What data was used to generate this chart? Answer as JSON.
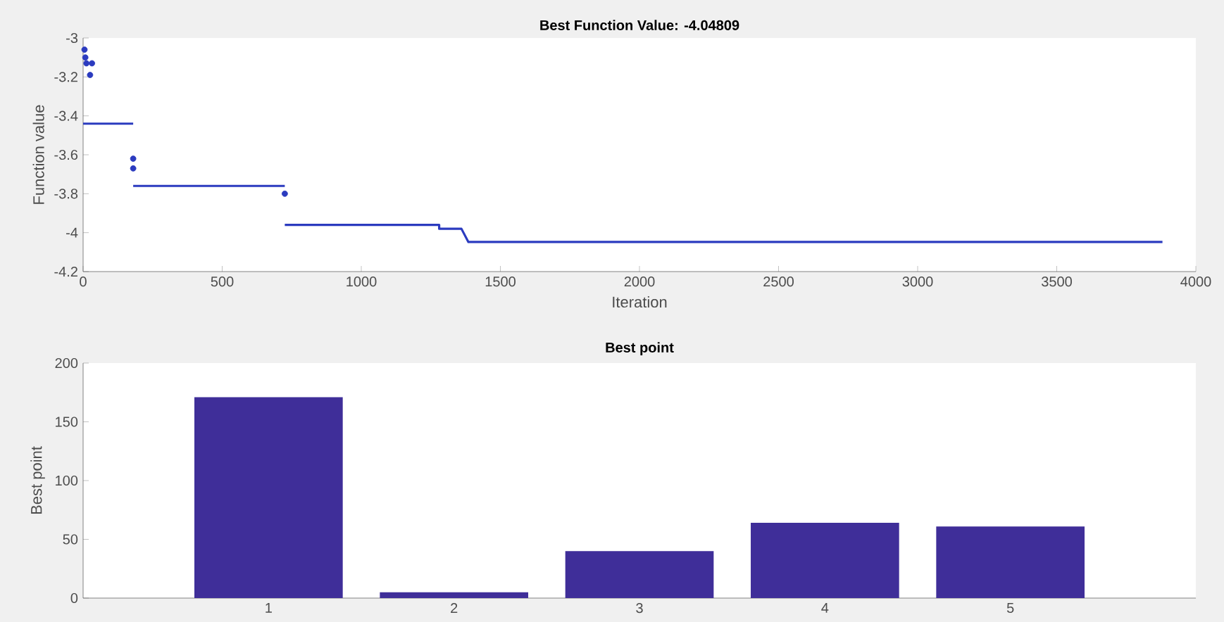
{
  "chart_data": [
    {
      "type": "line",
      "title": "Best Function Value: -4.04809",
      "xlabel": "Iteration",
      "ylabel": "Function value",
      "xlim": [
        0,
        4000
      ],
      "ylim": [
        -4.2,
        -3
      ],
      "xticks": [
        0,
        500,
        1000,
        1500,
        2000,
        2500,
        3000,
        3500,
        4000
      ],
      "yticks": [
        -4.2,
        -4,
        -3.8,
        -3.6,
        -3.4,
        -3.2,
        -3
      ],
      "series": [
        {
          "type": "line",
          "color": "#2b3bbf",
          "x": [
            0,
            180
          ],
          "values": [
            -3.44,
            -3.44
          ]
        },
        {
          "type": "line",
          "color": "#2b3bbf",
          "x": [
            180,
            725
          ],
          "values": [
            -3.76,
            -3.76
          ]
        },
        {
          "type": "line",
          "color": "#2b3bbf",
          "x": [
            725,
            1280,
            1280,
            1360,
            1385,
            3880
          ],
          "values": [
            -3.96,
            -3.96,
            -3.98,
            -3.98,
            -4.048,
            -4.048
          ]
        },
        {
          "type": "scatter",
          "color": "#2b3bbf",
          "marker": "circle",
          "x": [
            5,
            8,
            12,
            32,
            25,
            180,
            180,
            725
          ],
          "values": [
            -3.06,
            -3.1,
            -3.13,
            -3.13,
            -3.19,
            -3.62,
            -3.67,
            -3.8
          ]
        }
      ]
    },
    {
      "type": "bar",
      "title": "Best point",
      "ylabel": "Best point",
      "categories": [
        "1",
        "2",
        "3",
        "4",
        "5"
      ],
      "values": [
        171,
        5,
        40,
        64,
        61
      ],
      "color": "#3f2e99",
      "ylim": [
        0,
        200
      ],
      "yticks": [
        0,
        50,
        100,
        150,
        200
      ]
    }
  ]
}
